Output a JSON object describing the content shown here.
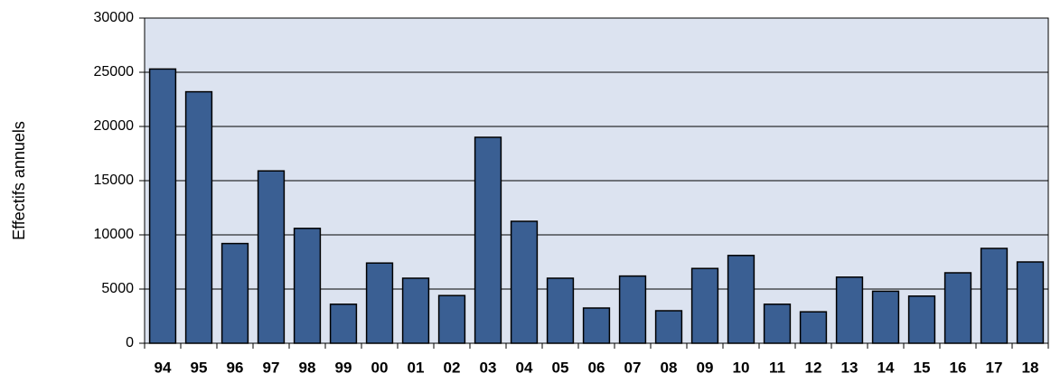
{
  "chart_data": {
    "type": "bar",
    "y_label": "Effectifs annuels",
    "categories": [
      "94",
      "95",
      "96",
      "97",
      "98",
      "99",
      "00",
      "01",
      "02",
      "03",
      "04",
      "05",
      "06",
      "07",
      "08",
      "09",
      "10",
      "11",
      "12",
      "13",
      "14",
      "15",
      "16",
      "17",
      "18"
    ],
    "values": [
      25300,
      23200,
      9200,
      15900,
      10600,
      3600,
      7400,
      6000,
      4400,
      19000,
      11250,
      6000,
      3250,
      6200,
      3000,
      6900,
      8100,
      3600,
      2900,
      6100,
      4800,
      4350,
      6500,
      8750,
      7500
    ],
    "color": "#3a5f93",
    "background": "#dce3f0",
    "ylim": [
      0,
      30000
    ],
    "yticks": [
      0,
      5000,
      10000,
      15000,
      20000,
      25000,
      30000
    ],
    "grid": true
  }
}
